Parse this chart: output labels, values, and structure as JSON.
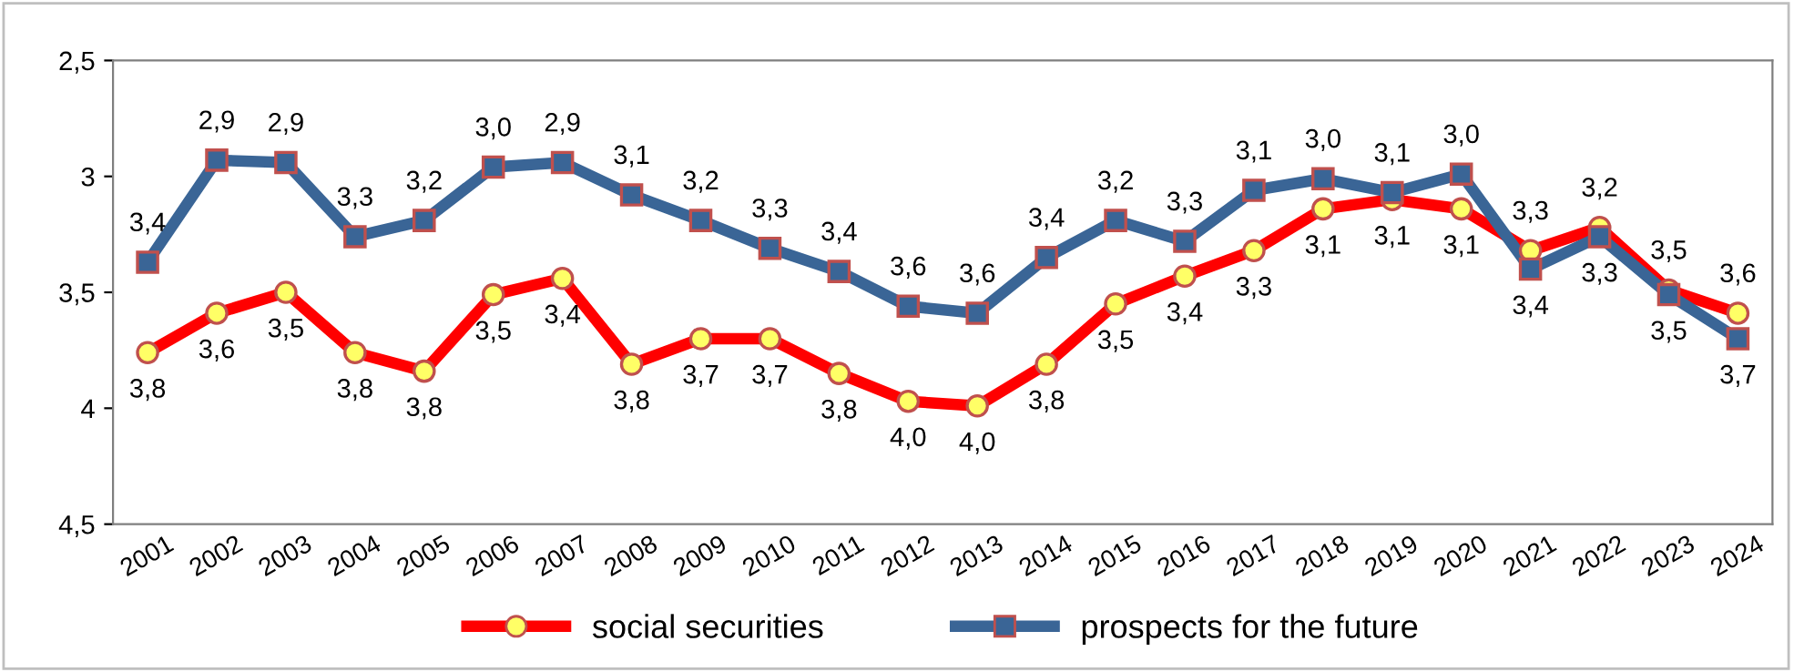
{
  "chart_data": {
    "type": "line",
    "categories": [
      "2001",
      "2002",
      "2003",
      "2004",
      "2005",
      "2006",
      "2007",
      "2008",
      "2009",
      "2010",
      "2011",
      "2012",
      "2013",
      "2014",
      "2015",
      "2016",
      "2017",
      "2018",
      "2019",
      "2020",
      "2021",
      "2022",
      "2023",
      "2024"
    ],
    "ylim": [
      4.5,
      2.5
    ],
    "yticks": [
      {
        "value": 2.5,
        "label": "2,5"
      },
      {
        "value": 3,
        "label": "3"
      },
      {
        "value": 3.5,
        "label": "3,5"
      },
      {
        "value": 4,
        "label": "4"
      },
      {
        "value": 4.5,
        "label": "4,5"
      }
    ],
    "grid": false,
    "legend": "bottom",
    "line_style": "solid",
    "series": [
      {
        "name": "social securities",
        "color": "#ff0000",
        "marker": "circle",
        "values": [
          3.76,
          3.59,
          3.5,
          3.76,
          3.84,
          3.51,
          3.44,
          3.81,
          3.7,
          3.7,
          3.85,
          3.97,
          3.99,
          3.81,
          3.55,
          3.43,
          3.32,
          3.14,
          3.1,
          3.14,
          3.32,
          3.22,
          3.49,
          3.59
        ],
        "value_labels": [
          "3,8",
          "3,6",
          "3,5",
          "3,8",
          "3,8",
          "3,5",
          "3,4",
          "3,8",
          "3,7",
          "3,7",
          "3,8",
          "4,0",
          "4,0",
          "3,8",
          "3,5",
          "3,4",
          "3,3",
          "3,1",
          "3,1",
          "3,1",
          "3,3",
          "3,2",
          "3,5",
          "3,6"
        ]
      },
      {
        "name": "prospects for the future",
        "color": "#3a6596",
        "marker": "square",
        "values": [
          3.37,
          2.93,
          2.94,
          3.26,
          3.19,
          2.96,
          2.94,
          3.08,
          3.19,
          3.31,
          3.41,
          3.56,
          3.59,
          3.35,
          3.19,
          3.28,
          3.06,
          3.01,
          3.07,
          2.99,
          3.4,
          3.26,
          3.51,
          3.7
        ],
        "value_labels": [
          "3,4",
          "2,9",
          "2,9",
          "3,3",
          "3,2",
          "3,0",
          "2,9",
          "3,1",
          "3,2",
          "3,3",
          "3,4",
          "3,6",
          "3,6",
          "3,4",
          "3,2",
          "3,3",
          "3,1",
          "3,0",
          "3,1",
          "3,0",
          "3,4",
          "3,3",
          "3,5",
          "3,7"
        ]
      }
    ]
  }
}
